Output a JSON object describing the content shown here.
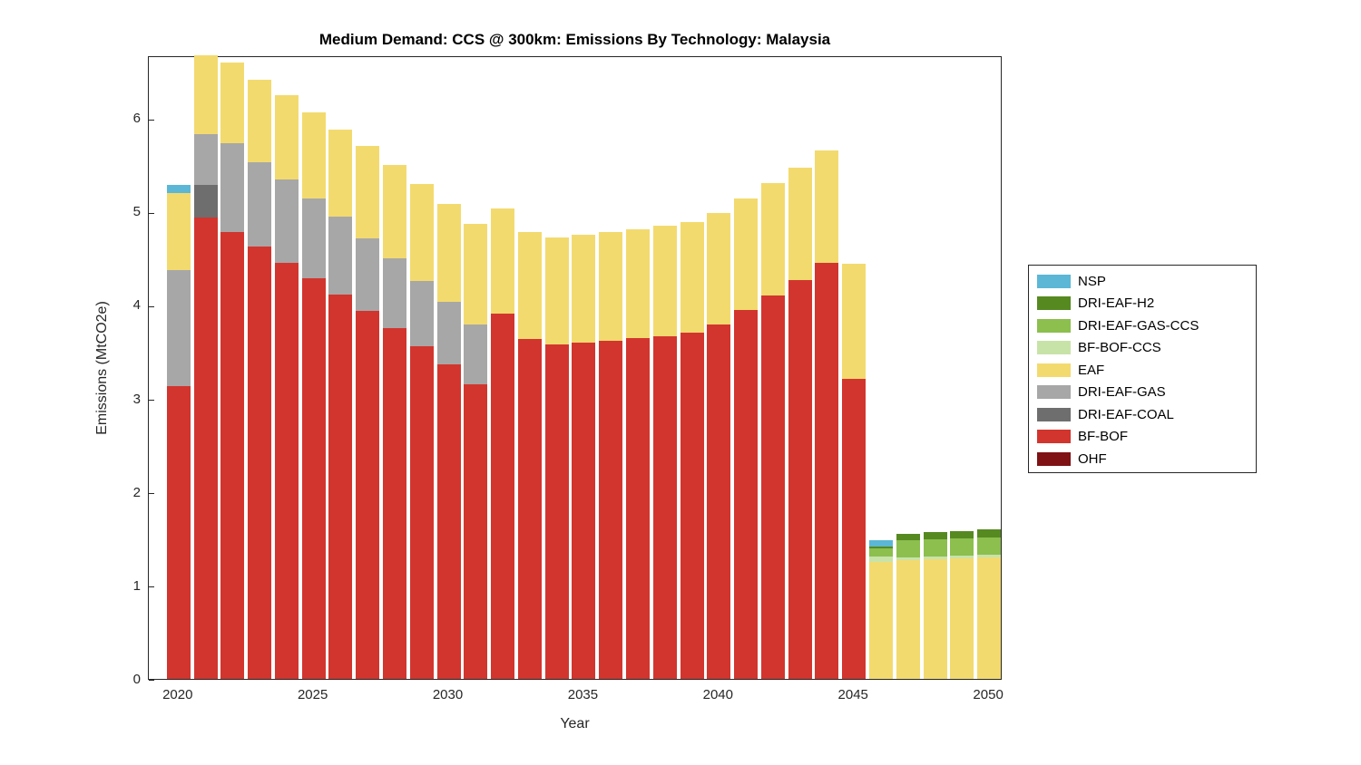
{
  "chart_data": {
    "type": "bar",
    "stacked": true,
    "title": "Medium Demand: CCS @ 300km: Emissions By Technology: Malaysia",
    "xlabel": "Year",
    "ylabel": "Emissions (MtCO2e)",
    "ylim": [
      0,
      6.67
    ],
    "xlim": [
      2018.9,
      2050.5
    ],
    "yticks": [
      0,
      1,
      2,
      3,
      4,
      5,
      6
    ],
    "xticks": [
      2020,
      2025,
      2030,
      2035,
      2040,
      2045,
      2050
    ],
    "grid": false,
    "legend_position": "right-outside",
    "categories": [
      2020,
      2021,
      2022,
      2023,
      2024,
      2025,
      2026,
      2027,
      2028,
      2029,
      2030,
      2031,
      2032,
      2033,
      2034,
      2035,
      2036,
      2037,
      2038,
      2039,
      2040,
      2041,
      2042,
      2043,
      2044,
      2045,
      2046,
      2047,
      2048,
      2049,
      2050
    ],
    "series": [
      {
        "name": "OHF",
        "color": "#7e1215",
        "values": [
          0,
          0,
          0,
          0,
          0,
          0,
          0,
          0,
          0,
          0,
          0,
          0,
          0,
          0,
          0,
          0,
          0,
          0,
          0,
          0,
          0,
          0,
          0,
          0,
          0,
          0,
          0,
          0,
          0,
          0,
          0
        ]
      },
      {
        "name": "BF-BOF",
        "color": "#d2352e",
        "values": [
          3.13,
          4.93,
          4.78,
          4.62,
          4.45,
          4.29,
          4.11,
          3.94,
          3.75,
          3.56,
          3.36,
          3.15,
          3.91,
          3.64,
          3.58,
          3.6,
          3.62,
          3.65,
          3.66,
          3.7,
          3.79,
          3.95,
          4.1,
          4.27,
          4.45,
          3.21,
          0,
          0,
          0,
          0,
          0
        ]
      },
      {
        "name": "DRI-EAF-COAL",
        "color": "#6e6e6e",
        "values": [
          0,
          0.35,
          0,
          0,
          0,
          0,
          0,
          0,
          0,
          0,
          0,
          0,
          0,
          0,
          0,
          0,
          0,
          0,
          0,
          0,
          0,
          0,
          0,
          0,
          0,
          0,
          0,
          0,
          0,
          0,
          0
        ]
      },
      {
        "name": "DRI-EAF-GAS",
        "color": "#a7a7a7",
        "values": [
          1.24,
          0.55,
          0.95,
          0.91,
          0.89,
          0.85,
          0.83,
          0.77,
          0.75,
          0.7,
          0.67,
          0.64,
          0,
          0,
          0,
          0,
          0,
          0,
          0,
          0,
          0,
          0,
          0,
          0,
          0,
          0,
          0,
          0,
          0,
          0,
          0
        ]
      },
      {
        "name": "EAF",
        "color": "#f3da6e",
        "values": [
          0.83,
          0.84,
          0.86,
          0.88,
          0.9,
          0.92,
          0.94,
          0.99,
          1.0,
          1.03,
          1.05,
          1.08,
          1.12,
          1.14,
          1.14,
          1.15,
          1.16,
          1.16,
          1.19,
          1.19,
          1.19,
          1.19,
          1.2,
          1.2,
          1.2,
          1.23,
          1.25,
          1.27,
          1.28,
          1.29,
          1.3
        ]
      },
      {
        "name": "BF-BOF-CCS",
        "color": "#c8e3a8",
        "values": [
          0,
          0,
          0,
          0,
          0,
          0,
          0,
          0,
          0,
          0,
          0,
          0,
          0,
          0,
          0,
          0,
          0,
          0,
          0,
          0,
          0,
          0,
          0,
          0,
          0,
          0,
          0.06,
          0.03,
          0.03,
          0.03,
          0.03
        ]
      },
      {
        "name": "DRI-EAF-GAS-CCS",
        "color": "#8cbf4e",
        "values": [
          0,
          0,
          0,
          0,
          0,
          0,
          0,
          0,
          0,
          0,
          0,
          0,
          0,
          0,
          0,
          0,
          0,
          0,
          0,
          0,
          0,
          0,
          0,
          0,
          0,
          0,
          0.09,
          0.18,
          0.18,
          0.18,
          0.18
        ]
      },
      {
        "name": "DRI-EAF-H2",
        "color": "#568a21",
        "values": [
          0,
          0,
          0,
          0,
          0,
          0,
          0,
          0,
          0,
          0,
          0,
          0,
          0,
          0,
          0,
          0,
          0,
          0,
          0,
          0,
          0,
          0,
          0,
          0,
          0,
          0,
          0.02,
          0.07,
          0.08,
          0.08,
          0.09
        ]
      },
      {
        "name": "NSP",
        "color": "#5bb7d5",
        "values": [
          0.08,
          0,
          0,
          0,
          0,
          0,
          0,
          0,
          0,
          0,
          0,
          0,
          0,
          0,
          0,
          0,
          0,
          0,
          0,
          0,
          0,
          0,
          0,
          0,
          0,
          0,
          0.06,
          0,
          0,
          0,
          0
        ]
      }
    ]
  }
}
